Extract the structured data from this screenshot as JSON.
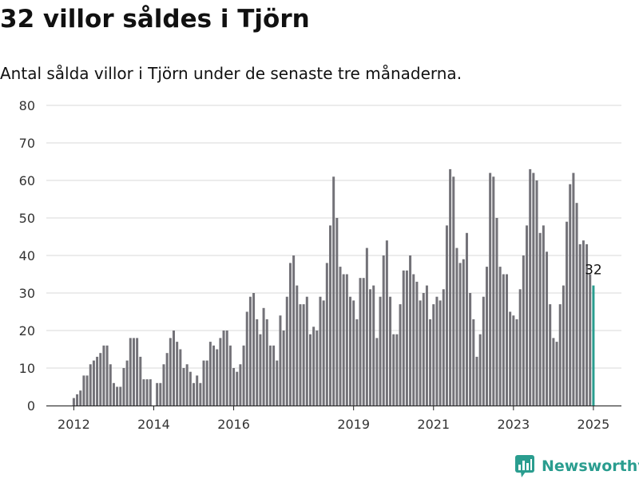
{
  "header": {
    "title": "32 villor såldes i Tjörn",
    "subtitle": "Antal sålda villor i Tjörn under de senaste tre månaderna."
  },
  "brand": {
    "name": "Newsworthy",
    "icon": "newsworthy-logo-icon"
  },
  "colors": {
    "bar": "#737278",
    "highlight": "#2a9d8f",
    "grid": "#d9d9d9",
    "text": "#333333"
  },
  "chart_data": {
    "type": "bar",
    "start": "2012-01",
    "x_ticks": [
      "2012",
      "2014",
      "2016",
      "2019",
      "2021",
      "2023",
      "2025"
    ],
    "y_ticks": [
      0,
      10,
      20,
      30,
      40,
      50,
      60,
      70,
      80
    ],
    "ylim": [
      0,
      80
    ],
    "grid": true,
    "highlight_label": "32",
    "values": [
      2,
      3,
      4,
      8,
      8,
      11,
      12,
      13,
      14,
      16,
      16,
      11,
      6,
      5,
      5,
      10,
      12,
      18,
      18,
      18,
      13,
      7,
      7,
      7,
      0,
      6,
      6,
      11,
      14,
      18,
      20,
      17,
      15,
      10,
      11,
      9,
      6,
      8,
      6,
      12,
      12,
      17,
      16,
      15,
      18,
      20,
      20,
      16,
      10,
      9,
      11,
      16,
      25,
      29,
      30,
      23,
      19,
      26,
      23,
      16,
      16,
      12,
      24,
      20,
      29,
      38,
      40,
      32,
      27,
      27,
      29,
      19,
      21,
      20,
      29,
      28,
      38,
      48,
      61,
      50,
      37,
      35,
      35,
      29,
      28,
      23,
      34,
      34,
      42,
      31,
      32,
      18,
      29,
      40,
      44,
      29,
      19,
      19,
      27,
      36,
      36,
      40,
      35,
      33,
      28,
      30,
      32,
      23,
      27,
      29,
      28,
      31,
      48,
      63,
      61,
      42,
      38,
      39,
      46,
      30,
      23,
      13,
      19,
      29,
      37,
      62,
      61,
      50,
      37,
      35,
      35,
      25,
      24,
      23,
      31,
      40,
      48,
      63,
      62,
      60,
      46,
      48,
      41,
      27,
      18,
      17,
      27,
      32,
      49,
      59,
      62,
      54,
      43,
      44,
      43,
      35,
      32
    ]
  }
}
